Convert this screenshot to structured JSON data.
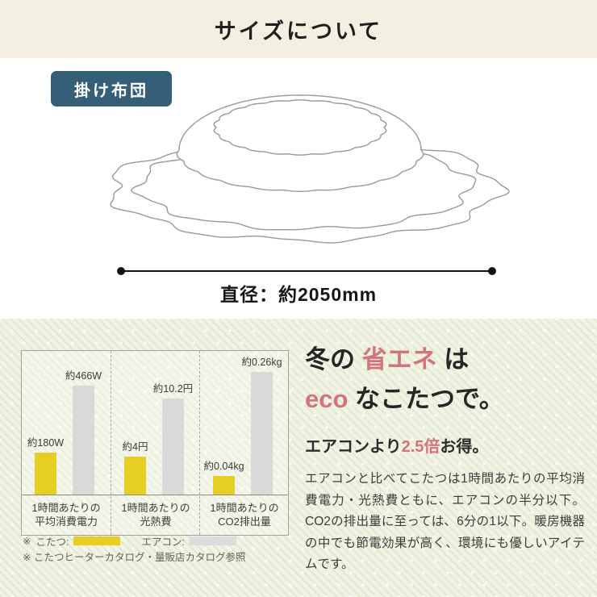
{
  "page_title": "サイズについて",
  "size_section": {
    "badge_label": "掛け布団",
    "illustration": "round-kotatsu-futon-line-drawing",
    "dimension_label": "直径：約2050mm"
  },
  "chart_data": {
    "type": "bar",
    "title": "",
    "categories": [
      "1時間あたりの平均消費電力",
      "1時間あたりの光熱費",
      "1時間あたりのCO2排出量"
    ],
    "category_lines": [
      [
        "1時間あたりの",
        "平均消費電力"
      ],
      [
        "1時間あたりの",
        "光熱費"
      ],
      [
        "1時間あたりの",
        "CO2排出量"
      ]
    ],
    "series": [
      {
        "name": "こたつ",
        "color": "#e7ce24",
        "values": [
          180,
          4,
          0.04
        ],
        "value_labels": [
          "約180W",
          "約4円",
          "約0.04kg"
        ]
      },
      {
        "name": "エアコン",
        "color": "#d9d9d8",
        "values": [
          466,
          10.2,
          0.26
        ],
        "value_labels": [
          "約466W",
          "約10.2円",
          "約0.26kg"
        ]
      }
    ],
    "legend_position": "below",
    "grid": false
  },
  "legend": {
    "marker": "※",
    "items": [
      {
        "label": "こたつ:",
        "color": "#e7ce24"
      },
      {
        "label": "エアコン:",
        "color": "#dcdcdc"
      }
    ],
    "note": "※ こたつヒーターカタログ・量販店カタログ参照"
  },
  "eco_text": {
    "heading_lines": [
      [
        {
          "t": "冬の ",
          "accent": false
        },
        {
          "t": "省エネ",
          "accent": true
        },
        {
          "t": " は",
          "accent": false
        }
      ],
      [
        {
          "t": "eco",
          "accent": true
        },
        {
          "t": " なこたつで。",
          "accent": false
        }
      ]
    ],
    "subheading_parts": [
      {
        "t": "エアコンより",
        "accent": false
      },
      {
        "t": "2.5倍",
        "accent": true
      },
      {
        "t": "お得。",
        "accent": false
      }
    ],
    "body": "エアコンと比べてこたつは1時間あたりの平均消費電力・光熱費ともに、エアコンの半分以下。CO2の排出量に至っては、6分の1以下。暖房機器の中でも節電効果が高く、環境にも優しいアイテムです。"
  },
  "colors": {
    "cream_band": "#f3f0e2",
    "badge_teal": "#355f78",
    "accent_pink": "#d4737c",
    "kotatsu_yellow": "#e7ce24",
    "aircon_gray": "#d9d9d8",
    "stripe_bg": "#f1f3e4",
    "line_drawing": "#999999"
  }
}
